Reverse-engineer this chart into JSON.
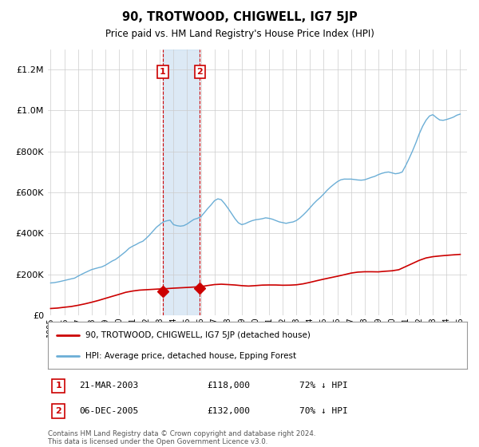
{
  "title": "90, TROTWOOD, CHIGWELL, IG7 5JP",
  "subtitle": "Price paid vs. HM Land Registry's House Price Index (HPI)",
  "legend_line1": "90, TROTWOOD, CHIGWELL, IG7 5JP (detached house)",
  "legend_line2": "HPI: Average price, detached house, Epping Forest",
  "footnote": "Contains HM Land Registry data © Crown copyright and database right 2024.\nThis data is licensed under the Open Government Licence v3.0.",
  "sale1_date": "21-MAR-2003",
  "sale1_price": "£118,000",
  "sale1_hpi": "72% ↓ HPI",
  "sale1_year": 2003.22,
  "sale1_value": 118000,
  "sale2_date": "06-DEC-2005",
  "sale2_price": "£132,000",
  "sale2_hpi": "70% ↓ HPI",
  "sale2_year": 2005.92,
  "sale2_value": 132000,
  "hpi_color": "#6baed6",
  "price_color": "#cc0000",
  "shading_color": "#c6dbef",
  "background_color": "#ffffff",
  "grid_color": "#cccccc",
  "ylim_min": 0,
  "ylim_max": 1300000,
  "xmin": 1994.8,
  "xmax": 2025.5,
  "hpi_years": [
    1995,
    1995.25,
    1995.5,
    1995.75,
    1996,
    1996.25,
    1996.5,
    1996.75,
    1997,
    1997.25,
    1997.5,
    1997.75,
    1998,
    1998.25,
    1998.5,
    1998.75,
    1999,
    1999.25,
    1999.5,
    1999.75,
    2000,
    2000.25,
    2000.5,
    2000.75,
    2001,
    2001.25,
    2001.5,
    2001.75,
    2002,
    2002.25,
    2002.5,
    2002.75,
    2003,
    2003.25,
    2003.5,
    2003.75,
    2004,
    2004.25,
    2004.5,
    2004.75,
    2005,
    2005.25,
    2005.5,
    2005.75,
    2006,
    2006.25,
    2006.5,
    2006.75,
    2007,
    2007.25,
    2007.5,
    2007.75,
    2008,
    2008.25,
    2008.5,
    2008.75,
    2009,
    2009.25,
    2009.5,
    2009.75,
    2010,
    2010.25,
    2010.5,
    2010.75,
    2011,
    2011.25,
    2011.5,
    2011.75,
    2012,
    2012.25,
    2012.5,
    2012.75,
    2013,
    2013.25,
    2013.5,
    2013.75,
    2014,
    2014.25,
    2014.5,
    2014.75,
    2015,
    2015.25,
    2015.5,
    2015.75,
    2016,
    2016.25,
    2016.5,
    2016.75,
    2017,
    2017.25,
    2017.5,
    2017.75,
    2018,
    2018.25,
    2018.5,
    2018.75,
    2019,
    2019.25,
    2019.5,
    2019.75,
    2020,
    2020.25,
    2020.5,
    2020.75,
    2021,
    2021.25,
    2021.5,
    2021.75,
    2022,
    2022.25,
    2022.5,
    2022.75,
    2023,
    2023.25,
    2023.5,
    2023.75,
    2024,
    2024.25,
    2024.5,
    2024.75,
    2025
  ],
  "hpi_vals": [
    155000,
    157000,
    160000,
    163000,
    168000,
    172000,
    176000,
    182000,
    190000,
    198000,
    207000,
    215000,
    222000,
    227000,
    232000,
    238000,
    245000,
    255000,
    265000,
    275000,
    285000,
    298000,
    312000,
    325000,
    335000,
    345000,
    355000,
    365000,
    378000,
    395000,
    415000,
    432000,
    448000,
    460000,
    468000,
    472000,
    452000,
    445000,
    440000,
    443000,
    450000,
    462000,
    472000,
    478000,
    488000,
    510000,
    530000,
    545000,
    565000,
    575000,
    568000,
    548000,
    525000,
    500000,
    475000,
    455000,
    448000,
    452000,
    460000,
    465000,
    470000,
    475000,
    478000,
    480000,
    478000,
    475000,
    470000,
    465000,
    462000,
    460000,
    462000,
    465000,
    472000,
    482000,
    495000,
    512000,
    530000,
    548000,
    565000,
    582000,
    598000,
    615000,
    630000,
    645000,
    658000,
    668000,
    672000,
    670000,
    668000,
    665000,
    662000,
    660000,
    662000,
    668000,
    675000,
    680000,
    685000,
    690000,
    695000,
    698000,
    695000,
    690000,
    692000,
    700000,
    730000,
    765000,
    800000,
    840000,
    882000,
    920000,
    950000,
    970000,
    975000,
    960000,
    950000,
    948000,
    952000,
    958000,
    965000,
    972000,
    978000
  ],
  "red_years": [
    1995,
    1995.5,
    1996,
    1996.5,
    1997,
    1997.5,
    1998,
    1998.5,
    1999,
    1999.5,
    2000,
    2000.5,
    2001,
    2001.5,
    2002,
    2002.5,
    2003,
    2003.5,
    2004,
    2004.5,
    2005,
    2005.5,
    2006,
    2006.5,
    2007,
    2007.5,
    2008,
    2008.5,
    2009,
    2009.5,
    2010,
    2010.5,
    2011,
    2011.5,
    2012,
    2012.5,
    2013,
    2013.5,
    2014,
    2014.5,
    2015,
    2015.5,
    2016,
    2016.5,
    2017,
    2017.5,
    2018,
    2018.5,
    2019,
    2019.5,
    2020,
    2020.5,
    2021,
    2021.5,
    2022,
    2022.5,
    2023,
    2023.5,
    2024,
    2024.5,
    2025
  ],
  "red_vals": [
    32000,
    34000,
    38000,
    42000,
    48000,
    55000,
    63000,
    72000,
    82000,
    92000,
    102000,
    112000,
    118000,
    122000,
    124000,
    126000,
    128000,
    130000,
    132000,
    134000,
    136000,
    138000,
    140000,
    145000,
    150000,
    152000,
    150000,
    148000,
    145000,
    143000,
    145000,
    147000,
    148000,
    148000,
    147000,
    148000,
    150000,
    155000,
    162000,
    170000,
    178000,
    185000,
    192000,
    200000,
    208000,
    213000,
    215000,
    215000,
    215000,
    218000,
    220000,
    225000,
    240000,
    255000,
    270000,
    282000,
    288000,
    292000,
    295000,
    298000,
    300000
  ]
}
